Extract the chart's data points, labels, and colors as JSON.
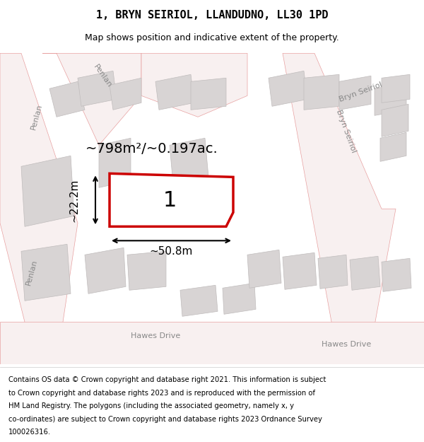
{
  "title": "1, BRYN SEIRIOL, LLANDUDNO, LL30 1PD",
  "subtitle": "Map shows position and indicative extent of the property.",
  "footer_lines": [
    "Contains OS data © Crown copyright and database right 2021. This information is subject",
    "to Crown copyright and database rights 2023 and is reproduced with the permission of",
    "HM Land Registry. The polygons (including the associated geometry, namely x, y",
    "co-ordinates) are subject to Crown copyright and database rights 2023 Ordnance Survey",
    "100026316."
  ],
  "area_text": "~798m²/~0.197ac.",
  "dim_width": "~50.8m",
  "dim_height": "~22.2m",
  "plot_label": "1",
  "map_bg": "#f0eeee",
  "road_color": "#e8a0a0",
  "road_fill": "#f8f0f0",
  "building_fill": "#d8d4d4",
  "building_edge": "#c0bcbc",
  "plot_fill": "#ffffff",
  "plot_edge": "#cc0000",
  "title_fontsize": 11,
  "subtitle_fontsize": 9,
  "footer_fontsize": 7.2,
  "annotation_fontsize": 13
}
